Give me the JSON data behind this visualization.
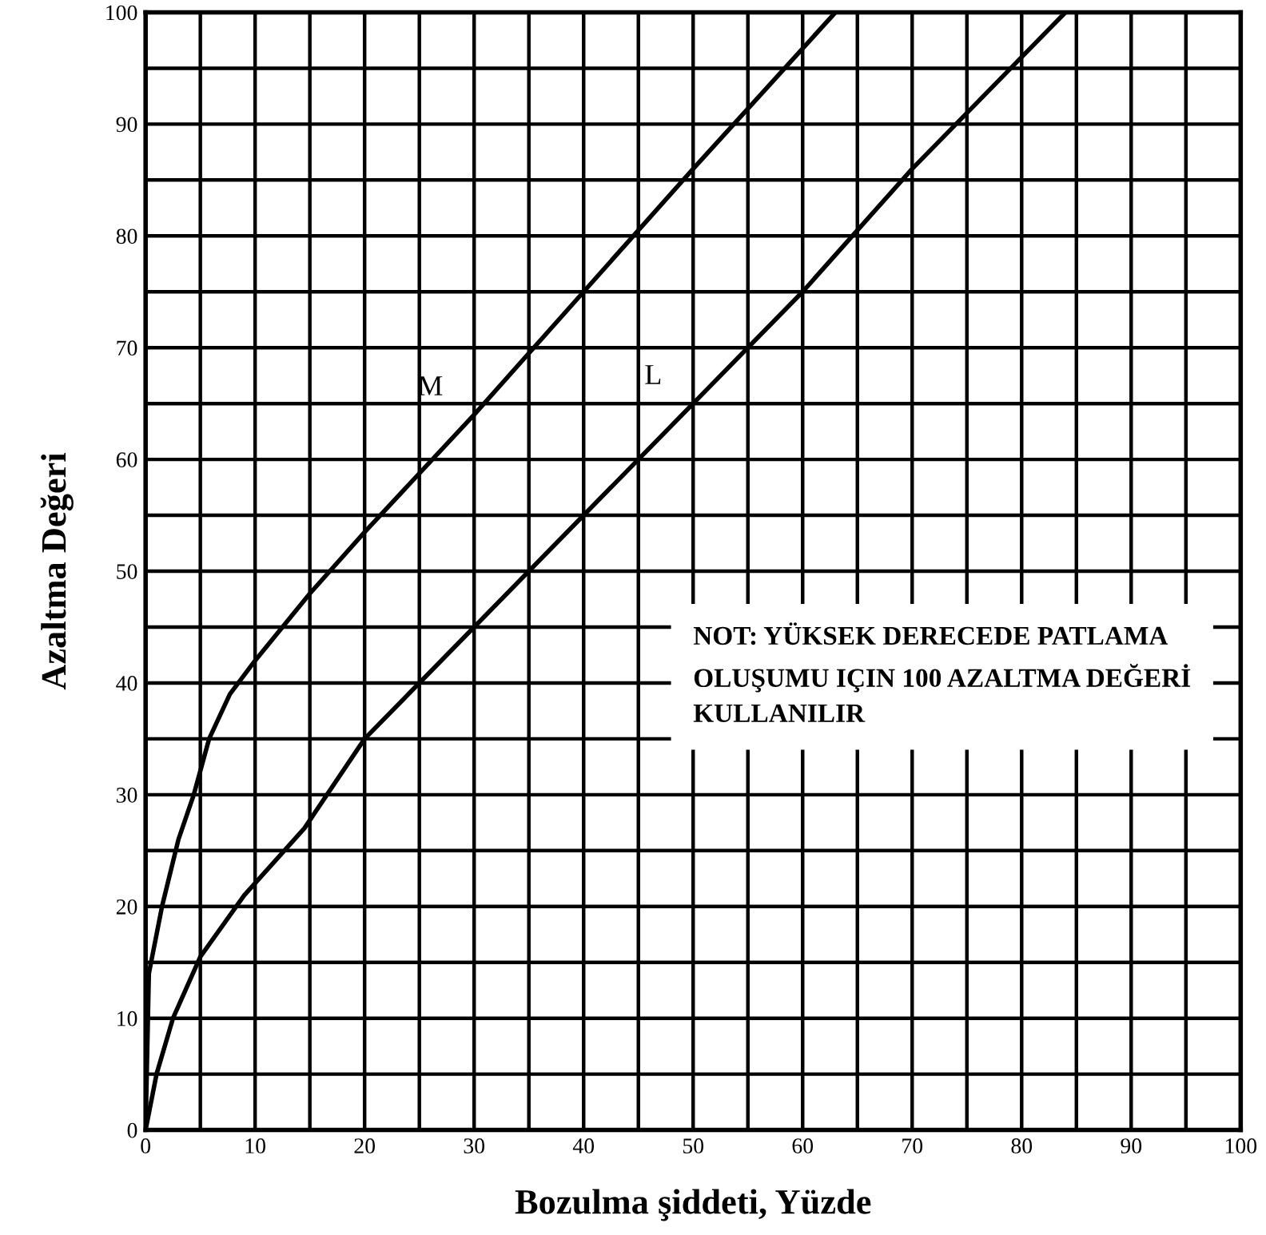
{
  "chart_data": {
    "type": "line",
    "xlabel": "Bozulma şiddeti, Yüzde",
    "ylabel": "Azaltma Değeri",
    "xlim": [
      0,
      100
    ],
    "ylim": [
      0,
      100
    ],
    "xticks": [
      0,
      {
        "value": 5,
        "label": null
      },
      10,
      {
        "value": 15,
        "label": null
      },
      20,
      {
        "value": 25,
        "label": null
      },
      30,
      {
        "value": 35,
        "label": null
      },
      40,
      {
        "value": 45,
        "label": null
      },
      50,
      {
        "value": 55,
        "label": null
      },
      60,
      {
        "value": 65,
        "label": null
      },
      70,
      {
        "value": 75,
        "label": null
      },
      80,
      {
        "value": 85,
        "label": null
      },
      90,
      {
        "value": 95,
        "label": null
      },
      100
    ],
    "yticks": [
      0,
      {
        "value": 5,
        "label": null
      },
      10,
      {
        "value": 15,
        "label": null
      },
      20,
      {
        "value": 25,
        "label": null
      },
      30,
      {
        "value": 35,
        "label": null
      },
      40,
      {
        "value": 45,
        "label": null
      },
      50,
      {
        "value": 55,
        "label": null
      },
      60,
      {
        "value": 65,
        "label": null
      },
      70,
      {
        "value": 75,
        "label": null
      },
      80,
      {
        "value": 85,
        "label": null
      },
      90,
      {
        "value": 95,
        "label": null
      },
      100
    ],
    "grid": true,
    "legend": false,
    "marker": "none",
    "line_style": "solid",
    "series": [
      {
        "name": "M",
        "color": "#000000",
        "x": [
          0,
          0.3,
          1.5,
          3,
          4.4,
          5.8,
          7.7,
          10,
          15,
          20,
          30,
          40,
          50,
          63
        ],
        "values": [
          0,
          14,
          20,
          26,
          30,
          35,
          39,
          42,
          48,
          53.5,
          64,
          75,
          86,
          100
        ]
      },
      {
        "name": "L",
        "color": "#000000",
        "x": [
          0,
          1,
          2.5,
          5,
          9,
          14.5,
          20,
          30,
          40,
          50,
          60,
          70,
          84
        ],
        "values": [
          0,
          5,
          10,
          15.5,
          21,
          27,
          35,
          45,
          55,
          65,
          75,
          86,
          100
        ]
      }
    ],
    "annotations": [
      "NOT: YÜKSEK DERECEDE PATLAMA OLUŞUMU IÇIN 100 AZALTMA DEĞERİ KULLANILIR"
    ]
  }
}
